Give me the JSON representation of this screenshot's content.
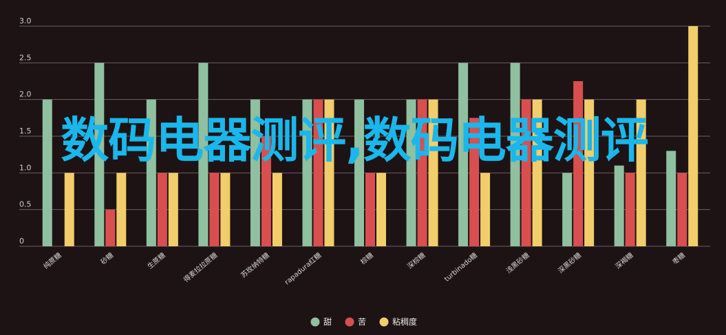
{
  "overlay_text": "数码电器测评,数码电器测评",
  "chart_data": {
    "type": "bar",
    "title": "",
    "xlabel": "",
    "ylabel": "",
    "ylim": [
      0,
      3.0
    ],
    "yticks": [
      "0",
      "0.5",
      "1.0",
      "1.5",
      "2.0",
      "2.5",
      "3.0"
    ],
    "grid": true,
    "legend_position": "bottom",
    "categories": [
      "纯蔗糖",
      "砂糖",
      "生蔗糖",
      "得麦拉拉蔗糖",
      "苏玫纳特糖",
      "rapadura红糖",
      "棕糖",
      "深棕糖",
      "turbinado糖",
      "浅黑砂糖",
      "深黑砂糖",
      "深褐糖",
      "枣糖"
    ],
    "series": [
      {
        "name": "甜",
        "color": "#8fc0a0",
        "values": [
          2.0,
          2.5,
          2.0,
          2.5,
          2.0,
          2.0,
          2.0,
          2.0,
          2.5,
          2.5,
          1.0,
          1.1,
          1.3
        ]
      },
      {
        "name": "苦",
        "color": "#d94f4f",
        "values": [
          0,
          0.5,
          1.0,
          1.0,
          1.5,
          2.0,
          1.0,
          2.0,
          1.75,
          2.0,
          2.25,
          1.0,
          1.0
        ]
      },
      {
        "name": "粘稠度",
        "color": "#f2cd6b",
        "values": [
          1.0,
          1.0,
          1.0,
          1.0,
          1.0,
          2.0,
          1.0,
          2.0,
          1.0,
          2.0,
          2.0,
          2.0,
          3.0
        ]
      }
    ]
  }
}
